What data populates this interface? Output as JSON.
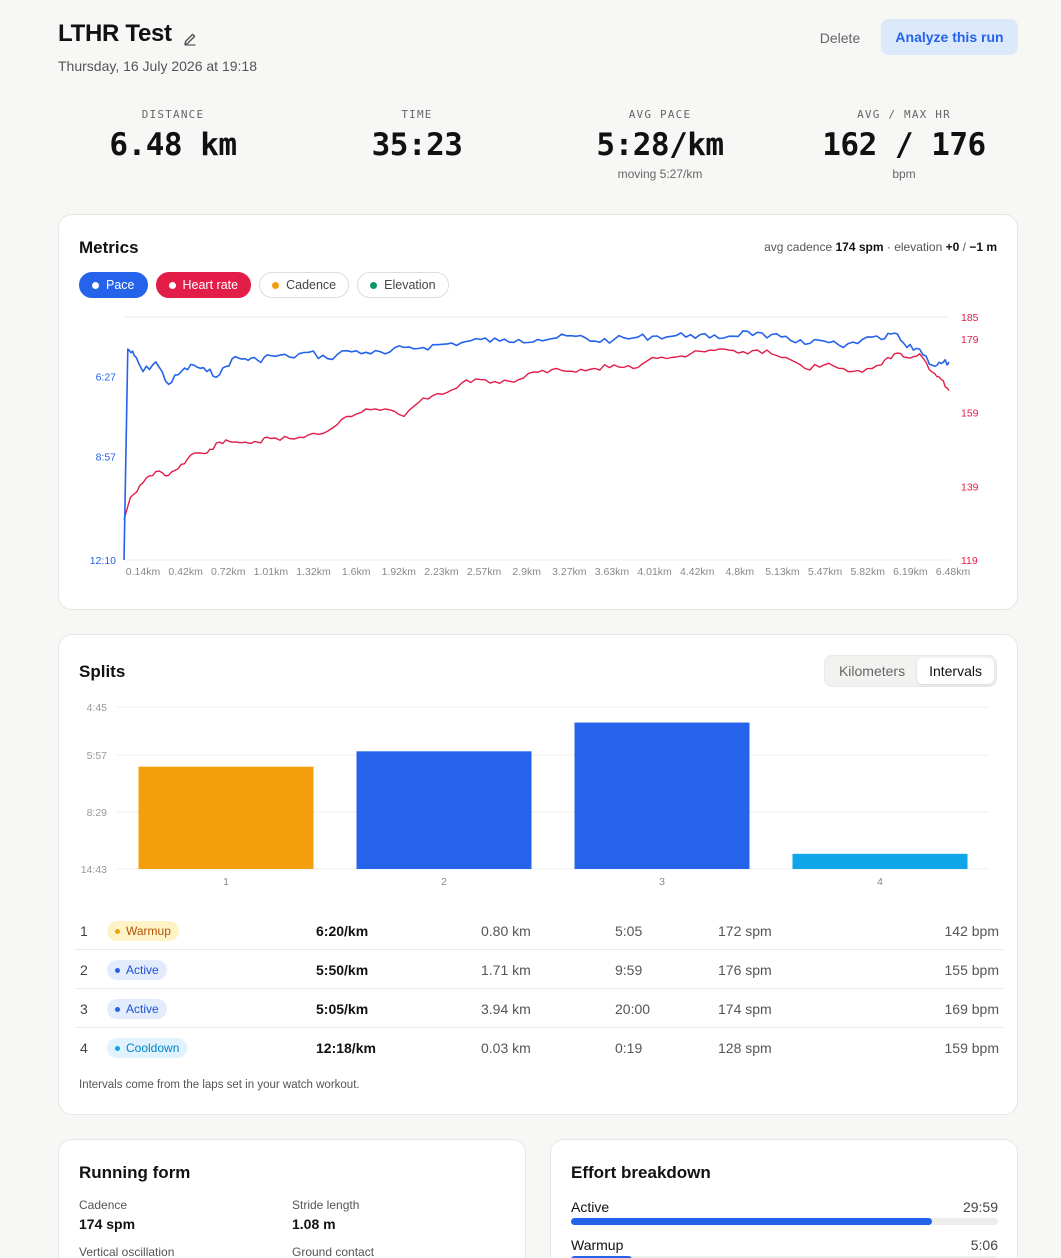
{
  "header": {
    "title": "LTHR Test",
    "date": "Thursday, 16 July 2026 at 19:18",
    "delete_label": "Delete",
    "analyze_label": "Analyze this run"
  },
  "stats": [
    {
      "label": "DISTANCE",
      "value": "6.48 km",
      "sub": ""
    },
    {
      "label": "TIME",
      "value": "35:23",
      "sub": ""
    },
    {
      "label": "AVG PACE",
      "value": "5:28/km",
      "sub": "moving 5:27/km"
    },
    {
      "label": "AVG / MAX HR",
      "value": "162 / 176",
      "sub": "bpm"
    }
  ],
  "metrics": {
    "title": "Metrics",
    "summary_prefix": "avg cadence",
    "summary_cadence": "174 spm",
    "summary_mid": "· elevation",
    "summary_gain": "+0",
    "summary_sep": "/",
    "summary_loss": "−1 m",
    "chips": [
      {
        "label": "Pace",
        "on": true,
        "color": "#2563eb"
      },
      {
        "label": "Heart rate",
        "on": true,
        "color": "#e11d48"
      },
      {
        "label": "Cadence",
        "on": false,
        "color": "#f59e0b"
      },
      {
        "label": "Elevation",
        "on": false,
        "color": "#059669"
      }
    ]
  },
  "chart_data": [
    {
      "type": "line",
      "x_tick_labels": [
        "0.14km",
        "0.42km",
        "0.72km",
        "1.01km",
        "1.32km",
        "1.6km",
        "1.92km",
        "2.23km",
        "2.57km",
        "2.9km",
        "3.27km",
        "3.63km",
        "4.01km",
        "4.42km",
        "4.8km",
        "5.13km",
        "5.47km",
        "5.82km",
        "6.19km",
        "6.48km"
      ],
      "y_left_ticks": [
        "6:27",
        "8:57",
        "12:10"
      ],
      "y_right_ticks": [
        "185",
        "179",
        "159",
        "139",
        "119"
      ],
      "ylim_right": [
        119,
        185
      ],
      "series": [
        {
          "name": "Pace",
          "color": "#2563eb",
          "axis": "left",
          "x_km": [
            0.0,
            0.03,
            0.08,
            0.15,
            0.25,
            0.35,
            0.45,
            0.55,
            0.65,
            0.75,
            0.85,
            0.95,
            1.05,
            1.15,
            1.3,
            1.45,
            1.6,
            1.75,
            1.9,
            2.05,
            2.2,
            2.35,
            2.5,
            2.65,
            2.8,
            2.95,
            3.1,
            3.25,
            3.4,
            3.55,
            3.7,
            3.85,
            4.0,
            4.15,
            4.3,
            4.45,
            4.6,
            4.75,
            4.9,
            5.05,
            5.2,
            5.35,
            5.5,
            5.65,
            5.8,
            5.95,
            6.05,
            6.15,
            6.25,
            6.35,
            6.42,
            6.48
          ],
          "pace_min_per_km": [
            12.17,
            5.6,
            5.8,
            6.3,
            6.0,
            6.7,
            6.3,
            6.1,
            6.3,
            6.4,
            5.9,
            5.9,
            5.95,
            5.8,
            5.85,
            5.7,
            5.9,
            5.65,
            5.7,
            5.75,
            5.55,
            5.55,
            5.45,
            5.4,
            5.3,
            5.35,
            5.3,
            5.3,
            5.25,
            5.2,
            5.35,
            5.3,
            5.25,
            5.2,
            5.2,
            5.15,
            5.25,
            5.2,
            5.05,
            5.25,
            5.2,
            5.45,
            5.35,
            5.55,
            5.3,
            5.3,
            5.1,
            5.55,
            5.6,
            6.1,
            6.05,
            6.0
          ]
        },
        {
          "name": "Heart rate",
          "color": "#e11d48",
          "axis": "right",
          "x_km": [
            0.0,
            0.05,
            0.15,
            0.25,
            0.35,
            0.45,
            0.55,
            0.65,
            0.75,
            0.85,
            0.95,
            1.05,
            1.15,
            1.3,
            1.45,
            1.6,
            1.75,
            1.9,
            2.05,
            2.2,
            2.35,
            2.5,
            2.65,
            2.8,
            2.95,
            3.1,
            3.25,
            3.4,
            3.55,
            3.7,
            3.85,
            4.0,
            4.15,
            4.3,
            4.45,
            4.6,
            4.75,
            4.9,
            5.05,
            5.2,
            5.35,
            5.5,
            5.65,
            5.8,
            5.95,
            6.05,
            6.15,
            6.25,
            6.35,
            6.42,
            6.48
          ],
          "bpm": [
            130,
            136,
            140,
            143,
            142,
            145,
            148,
            148,
            151,
            151,
            151,
            151,
            152,
            152,
            153,
            154,
            158,
            160,
            160,
            158,
            163,
            164,
            167,
            168,
            167,
            168,
            170,
            171,
            170,
            171,
            172,
            171,
            174,
            174,
            175,
            176,
            176,
            175,
            176,
            174,
            171,
            172,
            171,
            170,
            172,
            175,
            174,
            175,
            170,
            168,
            165
          ]
        }
      ]
    },
    {
      "type": "bar",
      "categories": [
        "1",
        "2",
        "3",
        "4"
      ],
      "y_tick_labels": [
        "4:45",
        "5:57",
        "8:29",
        "14:43"
      ],
      "values": [
        6.33,
        5.83,
        5.08,
        12.3
      ],
      "colors": [
        "#f59e0b",
        "#2563eb",
        "#2563eb",
        "#0ea5e9"
      ]
    }
  ],
  "splits": {
    "title": "Splits",
    "toggle": [
      "Kilometers",
      "Intervals"
    ],
    "active_toggle": "Intervals",
    "rows": [
      {
        "num": "1",
        "type": "Warmup",
        "pace": "6:20/km",
        "dist": "0.80 km",
        "time": "5:05",
        "cad": "172 spm",
        "hr": "142 bpm"
      },
      {
        "num": "2",
        "type": "Active",
        "pace": "5:50/km",
        "dist": "1.71 km",
        "time": "9:59",
        "cad": "176 spm",
        "hr": "155 bpm"
      },
      {
        "num": "3",
        "type": "Active",
        "pace": "5:05/km",
        "dist": "3.94 km",
        "time": "20:00",
        "cad": "174 spm",
        "hr": "169 bpm"
      },
      {
        "num": "4",
        "type": "Cooldown",
        "pace": "12:18/km",
        "dist": "0.03 km",
        "time": "0:19",
        "cad": "128 spm",
        "hr": "159 bpm"
      }
    ],
    "note": "Intervals come from the laps set in your watch workout."
  },
  "running_form": {
    "title": "Running form",
    "items": [
      {
        "label": "Cadence",
        "value": "174 spm"
      },
      {
        "label": "Stride length",
        "value": "1.08 m"
      },
      {
        "label": "Vertical oscillation",
        "value": ""
      },
      {
        "label": "Ground contact",
        "value": ""
      }
    ]
  },
  "effort": {
    "title": "Effort breakdown",
    "items": [
      {
        "name": "Active",
        "duration": "29:59",
        "fraction": 0.845
      },
      {
        "name": "Warmup",
        "duration": "5:06",
        "fraction": 0.144
      }
    ]
  },
  "colors": {
    "pace": "#2563eb",
    "heart_rate": "#e11d48",
    "warmup": "#f59e0b",
    "active": "#2563eb",
    "cooldown": "#0ea5e9"
  }
}
